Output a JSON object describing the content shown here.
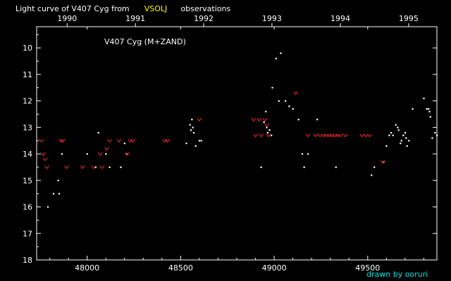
{
  "title": {
    "prefix": "Light curve of V407 Cyg from",
    "highlight": "VSOLJ",
    "suffix": "observations"
  },
  "credit": "drawn by ooruri",
  "colors": {
    "background": "#000000",
    "axes": "#ffffff",
    "observation": "#ffffff",
    "upper_limit": "#ff2a2a",
    "highlight": "#ffff00",
    "credit": "#00e5e5"
  },
  "chart_data": {
    "type": "scatter",
    "title": "Light curve of V407 Cyg from VSOLJ observations",
    "annotation": "V407 Cyg (M+ZAND)",
    "xlim": [
      47730,
      49870
    ],
    "ylim": [
      18,
      9.2
    ],
    "y_inverted": true,
    "x_ticks": [
      48000,
      48500,
      49000,
      49500
    ],
    "x_tick_labels": [
      "48000",
      "48500",
      "49000",
      "49500"
    ],
    "y_ticks": [
      10,
      11,
      12,
      13,
      14,
      15,
      16,
      17,
      18
    ],
    "y_tick_labels": [
      "10",
      "11",
      "12",
      "13",
      "14",
      "15",
      "16",
      "17",
      "18"
    ],
    "top_axis": {
      "ticks": [
        47893,
        48258,
        48623,
        48988,
        49354,
        49719
      ],
      "labels": [
        "1990",
        "1991",
        "1992",
        "1993",
        "1994",
        "1995"
      ]
    },
    "grid": false,
    "series": [
      {
        "marker": "dot",
        "points": [
          [
            47790,
            16.0
          ],
          [
            47820,
            15.5
          ],
          [
            47845,
            15.0
          ],
          [
            47850,
            15.5
          ],
          [
            47865,
            14.0
          ],
          [
            48000,
            14.0
          ],
          [
            48045,
            14.5
          ],
          [
            48060,
            13.2
          ],
          [
            48100,
            14.0
          ],
          [
            48120,
            14.5
          ],
          [
            48180,
            14.5
          ],
          [
            48200,
            13.6
          ],
          [
            48210,
            14.0
          ],
          [
            48530,
            13.6
          ],
          [
            48550,
            12.9
          ],
          [
            48555,
            13.1
          ],
          [
            48560,
            12.7
          ],
          [
            48565,
            13.0
          ],
          [
            48570,
            13.2
          ],
          [
            48580,
            13.7
          ],
          [
            48600,
            13.5
          ],
          [
            48610,
            13.5
          ],
          [
            48930,
            14.5
          ],
          [
            48945,
            12.8
          ],
          [
            48955,
            12.4
          ],
          [
            48960,
            13.0
          ],
          [
            48965,
            13.2
          ],
          [
            48975,
            13.1
          ],
          [
            48985,
            13.3
          ],
          [
            48990,
            11.5
          ],
          [
            49010,
            10.4
          ],
          [
            49025,
            12.0
          ],
          [
            49035,
            10.2
          ],
          [
            49060,
            12.0
          ],
          [
            49080,
            12.2
          ],
          [
            49100,
            12.3
          ],
          [
            49130,
            12.7
          ],
          [
            49150,
            14.0
          ],
          [
            49160,
            14.5
          ],
          [
            49180,
            14.0
          ],
          [
            49230,
            12.7
          ],
          [
            49330,
            14.5
          ],
          [
            49520,
            14.8
          ],
          [
            49535,
            14.5
          ],
          [
            49585,
            14.3
          ],
          [
            49600,
            13.7
          ],
          [
            49615,
            13.3
          ],
          [
            49625,
            13.2
          ],
          [
            49635,
            13.3
          ],
          [
            49650,
            12.9
          ],
          [
            49660,
            13.0
          ],
          [
            49665,
            13.1
          ],
          [
            49675,
            13.6
          ],
          [
            49680,
            13.5
          ],
          [
            49690,
            13.3
          ],
          [
            49700,
            13.2
          ],
          [
            49705,
            13.4
          ],
          [
            49710,
            13.7
          ],
          [
            49720,
            13.5
          ],
          [
            49740,
            12.3
          ],
          [
            49800,
            11.9
          ],
          [
            49815,
            12.3
          ],
          [
            49825,
            12.3
          ],
          [
            49830,
            12.4
          ],
          [
            49835,
            12.6
          ],
          [
            49845,
            13.4
          ],
          [
            49860,
            13.2
          ],
          [
            49870,
            13.3
          ]
        ]
      },
      {
        "marker": "upper-limit",
        "points": [
          [
            47755,
            13.5
          ],
          [
            47765,
            14.0
          ],
          [
            47775,
            14.2
          ],
          [
            47785,
            14.5
          ],
          [
            47860,
            13.5
          ],
          [
            47870,
            13.5
          ],
          [
            47890,
            14.5
          ],
          [
            47975,
            14.5
          ],
          [
            48035,
            14.5
          ],
          [
            48070,
            14.0
          ],
          [
            48080,
            14.5
          ],
          [
            48105,
            13.8
          ],
          [
            48120,
            13.5
          ],
          [
            48170,
            13.5
          ],
          [
            48215,
            14.0
          ],
          [
            48230,
            13.5
          ],
          [
            48245,
            13.5
          ],
          [
            48415,
            13.5
          ],
          [
            48430,
            13.5
          ],
          [
            48600,
            12.7
          ],
          [
            48890,
            12.7
          ],
          [
            48900,
            13.3
          ],
          [
            48920,
            12.7
          ],
          [
            48930,
            13.3
          ],
          [
            48950,
            12.7
          ],
          [
            48960,
            12.9
          ],
          [
            48970,
            13.3
          ],
          [
            49115,
            11.7
          ],
          [
            49180,
            13.3
          ],
          [
            49220,
            13.3
          ],
          [
            49245,
            13.3
          ],
          [
            49265,
            13.3
          ],
          [
            49280,
            13.3
          ],
          [
            49295,
            13.3
          ],
          [
            49310,
            13.3
          ],
          [
            49325,
            13.3
          ],
          [
            49340,
            13.3
          ],
          [
            49355,
            13.3
          ],
          [
            49380,
            13.3
          ],
          [
            49470,
            13.3
          ],
          [
            49490,
            13.3
          ],
          [
            49510,
            13.3
          ],
          [
            49580,
            14.3
          ]
        ]
      }
    ]
  }
}
